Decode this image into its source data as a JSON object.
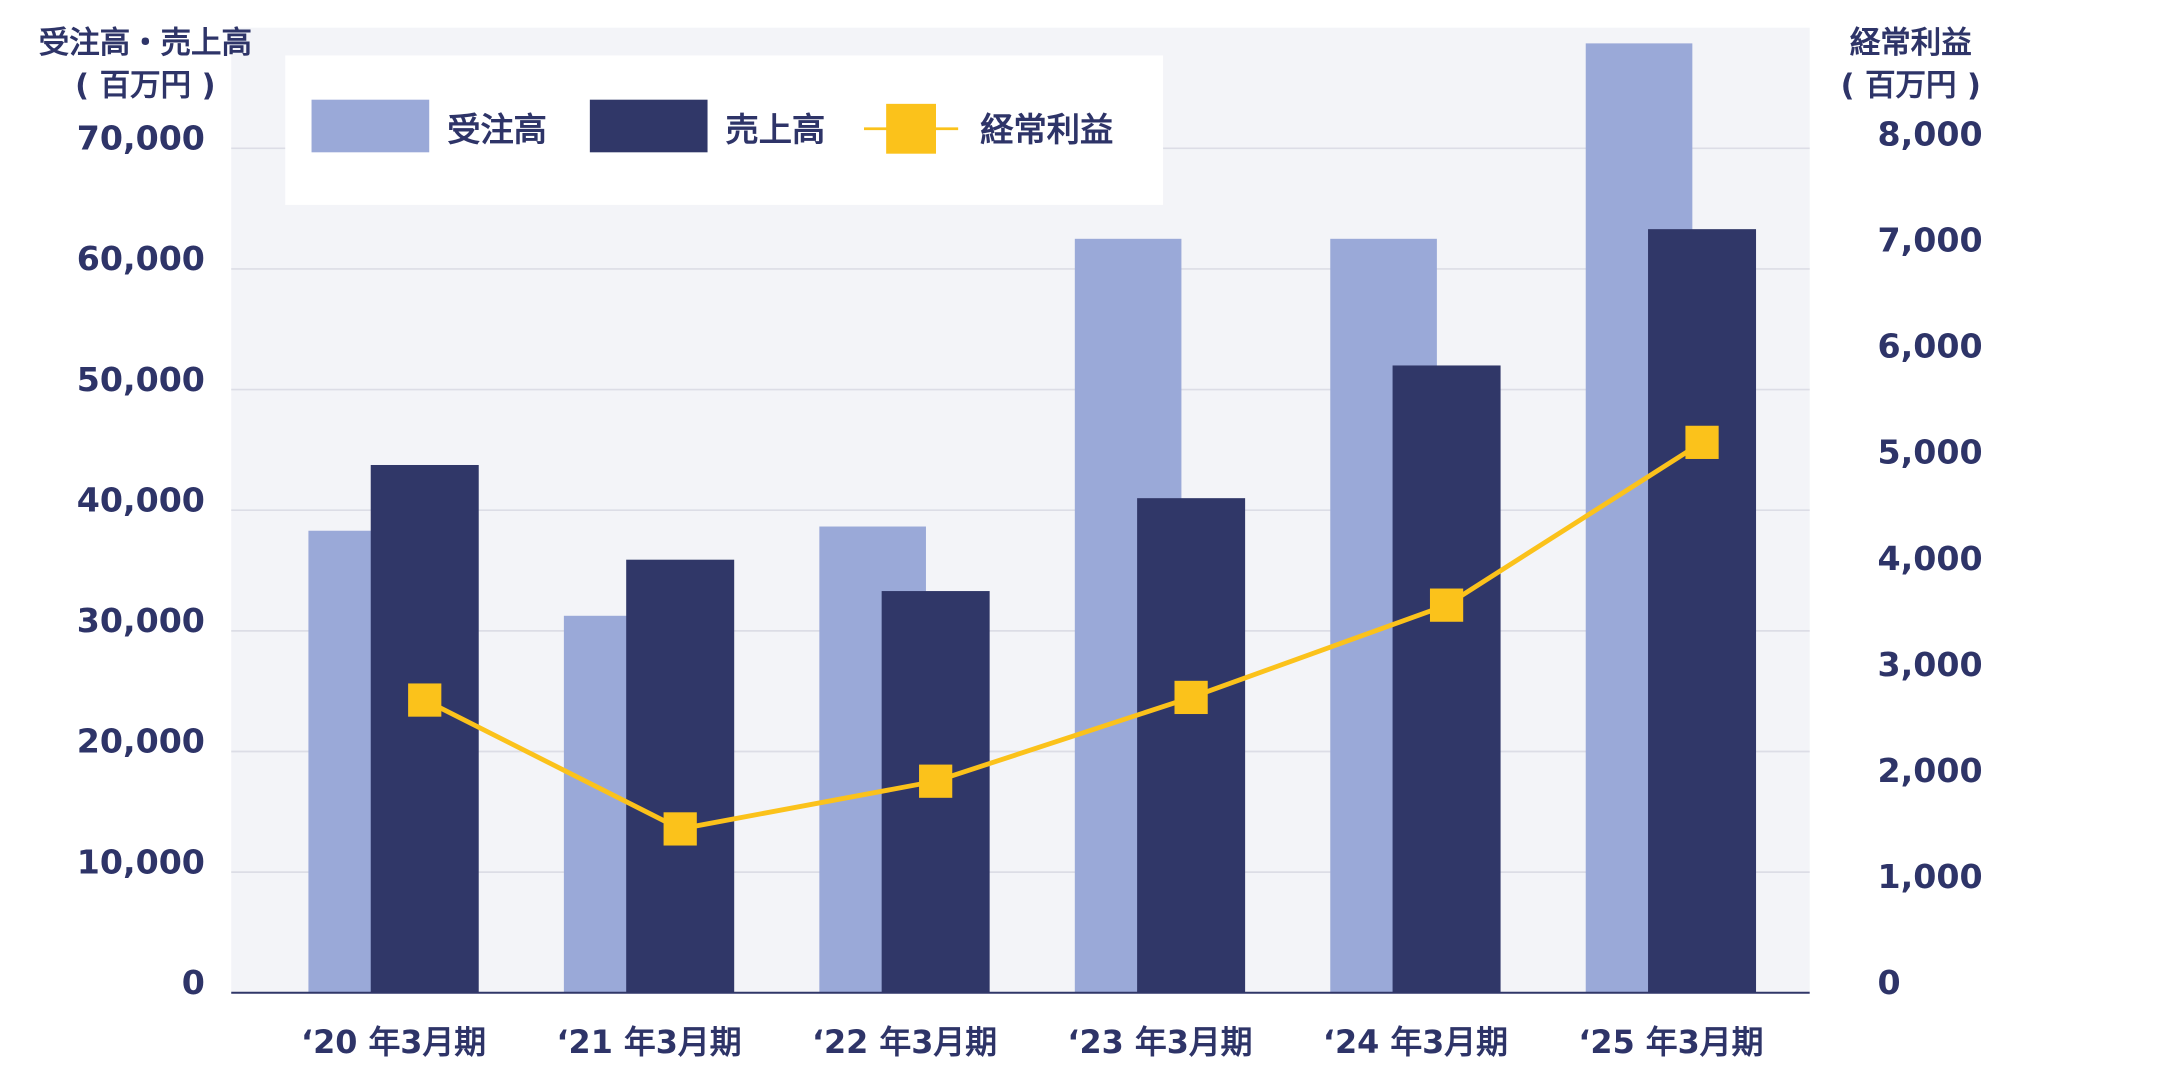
{
  "chart_data": {
    "type": "bar",
    "y_label": [
      "受注高・売上高",
      "( 百万円 )"
    ],
    "y2_label": [
      "経常利益",
      "( 百万円 )"
    ],
    "categories": [
      "‘20 年3月期",
      "‘21 年3月期",
      "‘22 年3月期",
      "‘23 年3月期",
      "‘24 年3月期",
      "‘25 年3月期"
    ],
    "series": [
      {
        "name": "受注高",
        "type": "bar",
        "color": "#9aa9d8",
        "values": [
          38300,
          31250,
          38650,
          62500,
          62500,
          78700
        ]
      },
      {
        "name": "売上高",
        "type": "bar",
        "color": "#303768",
        "values": [
          43750,
          35900,
          33300,
          41000,
          52000,
          63300
        ]
      },
      {
        "name": "経常利益",
        "type": "line",
        "axis": "y2",
        "color": "#fbc21b",
        "values": [
          2760,
          1545,
          1995,
          2785,
          3655,
          5190
        ]
      }
    ],
    "ylim": [
      0,
      80000
    ],
    "yticks": [
      0,
      {
        "value": 10000,
        "label": "10,000"
      },
      {
        "value": 20000,
        "label": "20,000"
      },
      {
        "value": 30000,
        "label": "30,000"
      },
      {
        "value": 40000,
        "label": "40,000"
      },
      {
        "value": 50000,
        "label": "50,000"
      },
      {
        "value": 60000,
        "label": "60,000"
      },
      {
        "value": 70000,
        "label": "70,000"
      }
    ],
    "y2lim": [
      0,
      9100
    ],
    "y2ticks": [
      0,
      {
        "value": 1000,
        "label": "1,000"
      },
      {
        "value": 2000,
        "label": "2,000"
      },
      {
        "value": 3000,
        "label": "3,000"
      },
      {
        "value": 4000,
        "label": "4,000"
      },
      {
        "value": 5000,
        "label": "5,000"
      },
      {
        "value": 6000,
        "label": "6,000"
      },
      {
        "value": 7000,
        "label": "7,000"
      },
      {
        "value": 8000,
        "label": "8,000"
      }
    ],
    "grid": true
  }
}
